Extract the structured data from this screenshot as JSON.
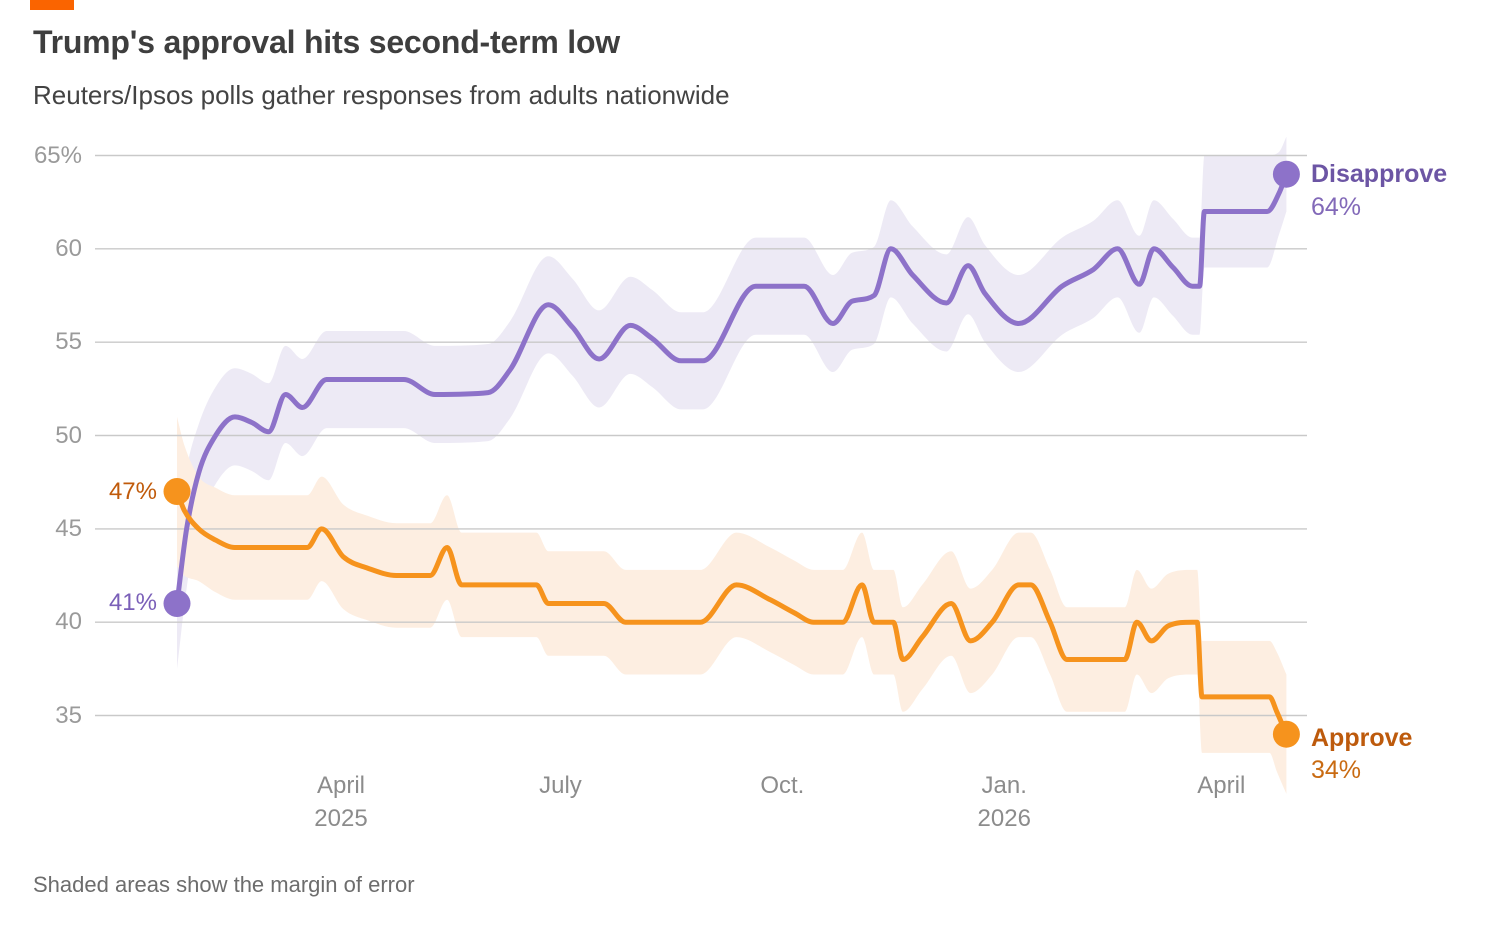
{
  "header": {
    "title": "Trump's approval hits second-term low",
    "subtitle": "Reuters/Ipsos polls gather responses from adults nationwide"
  },
  "footnote": "Shaded areas show the margin of error",
  "brand": {
    "accent_color": "#fa6400"
  },
  "chart_data": {
    "type": "line",
    "title": "Trump's approval hits second-term low",
    "subtitle": "Reuters/Ipsos polls gather responses from adults nationwide",
    "note": "Shaded areas show the margin of error",
    "grid": true,
    "legend_position": "line-end-labels",
    "y_axis": {
      "range": [
        32,
        66
      ],
      "ticks": [
        {
          "label": "65%",
          "value": 65
        },
        {
          "label": "60",
          "value": 60
        },
        {
          "label": "55",
          "value": 55
        },
        {
          "label": "50",
          "value": 50
        },
        {
          "label": "45",
          "value": 45
        },
        {
          "label": "40",
          "value": 40
        },
        {
          "label": "35",
          "value": 35
        }
      ],
      "gridline_color": "#c9c9c9",
      "label_color": "#9a9a9a"
    },
    "x_axis": {
      "label_color": "#8c8c8c",
      "ticks": [
        {
          "month": "April",
          "year": "2025",
          "date": "2025-04-01"
        },
        {
          "month": "July",
          "year": "",
          "date": "2025-07-01"
        },
        {
          "month": "Oct.",
          "year": "",
          "date": "2025-10-01"
        },
        {
          "month": "Jan.",
          "year": "2026",
          "date": "2026-01-01"
        },
        {
          "month": "April",
          "year": "",
          "date": "2026-04-01"
        }
      ]
    },
    "series": [
      {
        "name": "Disapprove",
        "line_color": "#8d72c9",
        "band_color": "#edeaf5",
        "name_color": "#6c55a4",
        "value_color": "#8269b8",
        "start_label": "41%",
        "start_label_color": "#7a5fb8",
        "end_label": {
          "name": "Disapprove",
          "value": "64%"
        },
        "default_moe": 2.6,
        "points": [
          [
            "2025-01-23",
            41,
            3.5
          ],
          [
            "2025-01-27",
            45,
            3.2
          ],
          [
            "2025-02-01",
            48
          ],
          [
            "2025-02-08",
            50
          ],
          [
            "2025-02-16",
            51
          ],
          [
            "2025-02-23",
            50.7
          ],
          [
            "2025-03-02",
            50.2
          ],
          [
            "2025-03-09",
            52.2
          ],
          [
            "2025-03-16",
            51.5
          ],
          [
            "2025-03-26",
            53
          ],
          [
            "2025-04-27",
            53
          ],
          [
            "2025-05-10",
            52.2
          ],
          [
            "2025-06-01",
            52.3
          ],
          [
            "2025-06-10",
            53.5
          ],
          [
            "2025-06-26",
            57
          ],
          [
            "2025-07-06",
            55.8
          ],
          [
            "2025-07-17",
            54.1
          ],
          [
            "2025-07-30",
            55.9
          ],
          [
            "2025-08-08",
            55.2
          ],
          [
            "2025-08-20",
            54
          ],
          [
            "2025-08-29",
            54
          ],
          [
            "2025-09-20",
            58
          ],
          [
            "2025-10-10",
            58
          ],
          [
            "2025-10-22",
            56
          ],
          [
            "2025-10-30",
            57.2
          ],
          [
            "2025-11-08",
            57.5
          ],
          [
            "2025-11-15",
            60
          ],
          [
            "2025-11-24",
            58.6
          ],
          [
            "2025-12-08",
            57.1
          ],
          [
            "2025-12-17",
            59.1
          ],
          [
            "2025-12-24",
            57.6
          ],
          [
            "2026-01-07",
            56
          ],
          [
            "2026-01-25",
            58
          ],
          [
            "2026-02-07",
            58.9
          ],
          [
            "2026-02-17",
            60
          ],
          [
            "2026-02-26",
            58.1
          ],
          [
            "2026-03-04",
            60
          ],
          [
            "2026-03-12",
            59
          ],
          [
            "2026-03-20",
            58
          ],
          [
            "2026-03-23",
            58
          ],
          [
            "2026-03-25",
            62,
            3
          ],
          [
            "2026-04-20",
            62,
            3
          ],
          [
            "2026-04-25",
            63,
            2.2
          ],
          [
            "2026-04-28",
            64,
            2
          ]
        ]
      },
      {
        "name": "Approve",
        "line_color": "#f6931d",
        "band_color": "#fdeee1",
        "name_color": "#bd5a0c",
        "value_color": "#c96b12",
        "start_label": "47%",
        "start_label_color": "#c05a0a",
        "end_label": {
          "name": "Approve",
          "value": "34%"
        },
        "default_moe": 2.8,
        "points": [
          [
            "2025-01-23",
            47,
            4
          ],
          [
            "2025-01-26",
            46,
            3.5
          ],
          [
            "2025-02-01",
            45
          ],
          [
            "2025-02-08",
            44.4
          ],
          [
            "2025-02-16",
            44
          ],
          [
            "2025-03-18",
            44
          ],
          [
            "2025-03-24",
            45
          ],
          [
            "2025-04-02",
            43.5
          ],
          [
            "2025-04-12",
            42.9
          ],
          [
            "2025-04-24",
            42.5
          ],
          [
            "2025-05-08",
            42.5
          ],
          [
            "2025-05-15",
            44
          ],
          [
            "2025-05-21",
            42
          ],
          [
            "2025-06-21",
            42
          ],
          [
            "2025-06-26",
            41
          ],
          [
            "2025-07-19",
            41
          ],
          [
            "2025-07-28",
            40
          ],
          [
            "2025-08-28",
            40
          ],
          [
            "2025-09-12",
            42
          ],
          [
            "2025-09-26",
            41.2
          ],
          [
            "2025-10-06",
            40.5
          ],
          [
            "2025-10-14",
            40
          ],
          [
            "2025-10-26",
            40
          ],
          [
            "2025-11-03",
            42
          ],
          [
            "2025-11-08",
            40
          ],
          [
            "2025-11-16",
            40
          ],
          [
            "2025-11-20",
            38
          ],
          [
            "2025-11-28",
            39.2
          ],
          [
            "2025-12-10",
            41
          ],
          [
            "2025-12-18",
            39
          ],
          [
            "2025-12-27",
            40
          ],
          [
            "2026-01-07",
            42
          ],
          [
            "2026-01-12",
            42
          ],
          [
            "2026-01-20",
            40
          ],
          [
            "2026-01-27",
            38
          ],
          [
            "2026-02-20",
            38
          ],
          [
            "2026-02-25",
            40
          ],
          [
            "2026-03-03",
            39
          ],
          [
            "2026-03-10",
            39.8
          ],
          [
            "2026-03-20",
            40
          ],
          [
            "2026-03-22",
            40
          ],
          [
            "2026-03-24",
            36,
            3
          ],
          [
            "2026-04-21",
            36,
            3
          ],
          [
            "2026-04-24",
            35.2,
            3.2
          ],
          [
            "2026-04-28",
            34,
            3.2
          ]
        ]
      }
    ]
  }
}
